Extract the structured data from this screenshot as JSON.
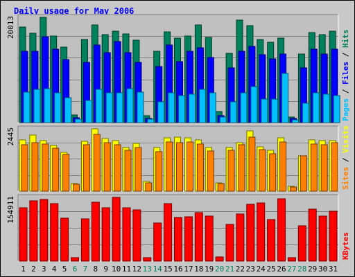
{
  "title": "Daily usage for May 2006",
  "colors": {
    "hits": "#00805c",
    "files": "#0000ff",
    "pages": "#00c0ff",
    "visits": "#ffff00",
    "sites": "#ff8000",
    "kbytes": "#ff0000",
    "weekend": "#00805c",
    "weekday": "#000000",
    "slash": "#000000"
  },
  "chart_data": [
    {
      "type": "bar",
      "title": "Daily usage for May 2006",
      "categories": [
        "1",
        "2",
        "3",
        "4",
        "5",
        "6",
        "7",
        "8",
        "9",
        "10",
        "11",
        "12",
        "13",
        "14",
        "15",
        "16",
        "17",
        "18",
        "19",
        "20",
        "21",
        "22",
        "23",
        "24",
        "25",
        "26",
        "27",
        "28",
        "29",
        "30",
        "31"
      ],
      "weekend_days": [
        "6",
        "7",
        "13",
        "14",
        "20",
        "21",
        "27",
        "28"
      ],
      "ymax_label": "20013",
      "ylim": [
        0,
        20013
      ],
      "right_label": [
        {
          "text": "Pages",
          "color_key": "pages"
        },
        {
          "text": "Files",
          "color_key": "files"
        },
        {
          "text": "Hits",
          "color_key": "hits"
        }
      ],
      "series": [
        {
          "name": "Hits",
          "color_key": "hits",
          "values": [
            18200,
            17000,
            20013,
            16500,
            14300,
            1500,
            15800,
            18600,
            16700,
            17400,
            16800,
            15700,
            1300,
            13600,
            17200,
            16100,
            16500,
            18600,
            16200,
            2100,
            13200,
            19500,
            18400,
            15800,
            15300,
            16100,
            1100,
            13100,
            17100,
            16700,
            17400
          ]
        },
        {
          "name": "Files",
          "color_key": "files",
          "values": [
            13600,
            13500,
            16300,
            13900,
            12000,
            900,
            11400,
            14800,
            13300,
            15400,
            13300,
            11400,
            800,
            10700,
            14800,
            11600,
            13600,
            14200,
            12400,
            1300,
            10400,
            13600,
            14500,
            12900,
            12100,
            13100,
            800,
            10400,
            13900,
            13100,
            14000
          ]
        },
        {
          "name": "Pages",
          "color_key": "pages",
          "values": [
            5800,
            6300,
            6500,
            5600,
            4800,
            700,
            4200,
            6300,
            5600,
            5600,
            6400,
            5800,
            600,
            3900,
            5700,
            5100,
            5400,
            6300,
            5600,
            1000,
            3900,
            5600,
            6800,
            4500,
            4500,
            9400,
            500,
            3700,
            5600,
            5400,
            5100
          ]
        }
      ]
    },
    {
      "type": "bar",
      "categories": [
        "1",
        "2",
        "3",
        "4",
        "5",
        "6",
        "7",
        "8",
        "9",
        "10",
        "11",
        "12",
        "13",
        "14",
        "15",
        "16",
        "17",
        "18",
        "19",
        "20",
        "21",
        "22",
        "23",
        "24",
        "25",
        "26",
        "27",
        "28",
        "29",
        "30",
        "31"
      ],
      "ymax_label": "2445",
      "ylim": [
        0,
        2445
      ],
      "right_label": [
        {
          "text": "Sites",
          "color_key": "sites"
        },
        {
          "text": "Visits",
          "color_key": "visits"
        }
      ],
      "series": [
        {
          "name": "Visits",
          "color_key": "visits",
          "values": [
            2000,
            2190,
            1980,
            1800,
            1520,
            300,
            1950,
            2445,
            2060,
            1970,
            1710,
            1870,
            390,
            1710,
            2100,
            2110,
            2100,
            2010,
            1720,
            330,
            1710,
            1890,
            2355,
            1730,
            1590,
            2100,
            200,
            1380,
            2000,
            1970,
            1980
          ]
        },
        {
          "name": "Sites",
          "color_key": "sites",
          "values": [
            1820,
            1900,
            1850,
            1680,
            1430,
            260,
            1830,
            2230,
            1910,
            1810,
            1600,
            1710,
            320,
            1560,
            1920,
            1900,
            1920,
            1860,
            1570,
            290,
            1590,
            1830,
            2110,
            1620,
            1460,
            1930,
            150,
            1380,
            1850,
            1820,
            1890
          ]
        }
      ]
    },
    {
      "type": "bar",
      "categories": [
        "1",
        "2",
        "3",
        "4",
        "5",
        "6",
        "7",
        "8",
        "9",
        "10",
        "11",
        "12",
        "13",
        "14",
        "15",
        "16",
        "17",
        "18",
        "19",
        "20",
        "21",
        "22",
        "23",
        "24",
        "25",
        "26",
        "27",
        "28",
        "29",
        "30",
        "31"
      ],
      "ymax_label": "154911",
      "ylim": [
        0,
        154911
      ],
      "right_label": [
        {
          "text": "KBytes",
          "color_key": "kbytes"
        }
      ],
      "series": [
        {
          "name": "KBytes",
          "color_key": "kbytes",
          "values": [
            130000,
            147000,
            150000,
            139000,
            104000,
            9000,
            103000,
            143000,
            130000,
            154911,
            130000,
            125000,
            8000,
            92000,
            139000,
            106000,
            108000,
            118000,
            110000,
            10000,
            89000,
            115000,
            138000,
            141000,
            101000,
            151000,
            9000,
            86000,
            127000,
            109000,
            122000
          ]
        }
      ]
    }
  ]
}
